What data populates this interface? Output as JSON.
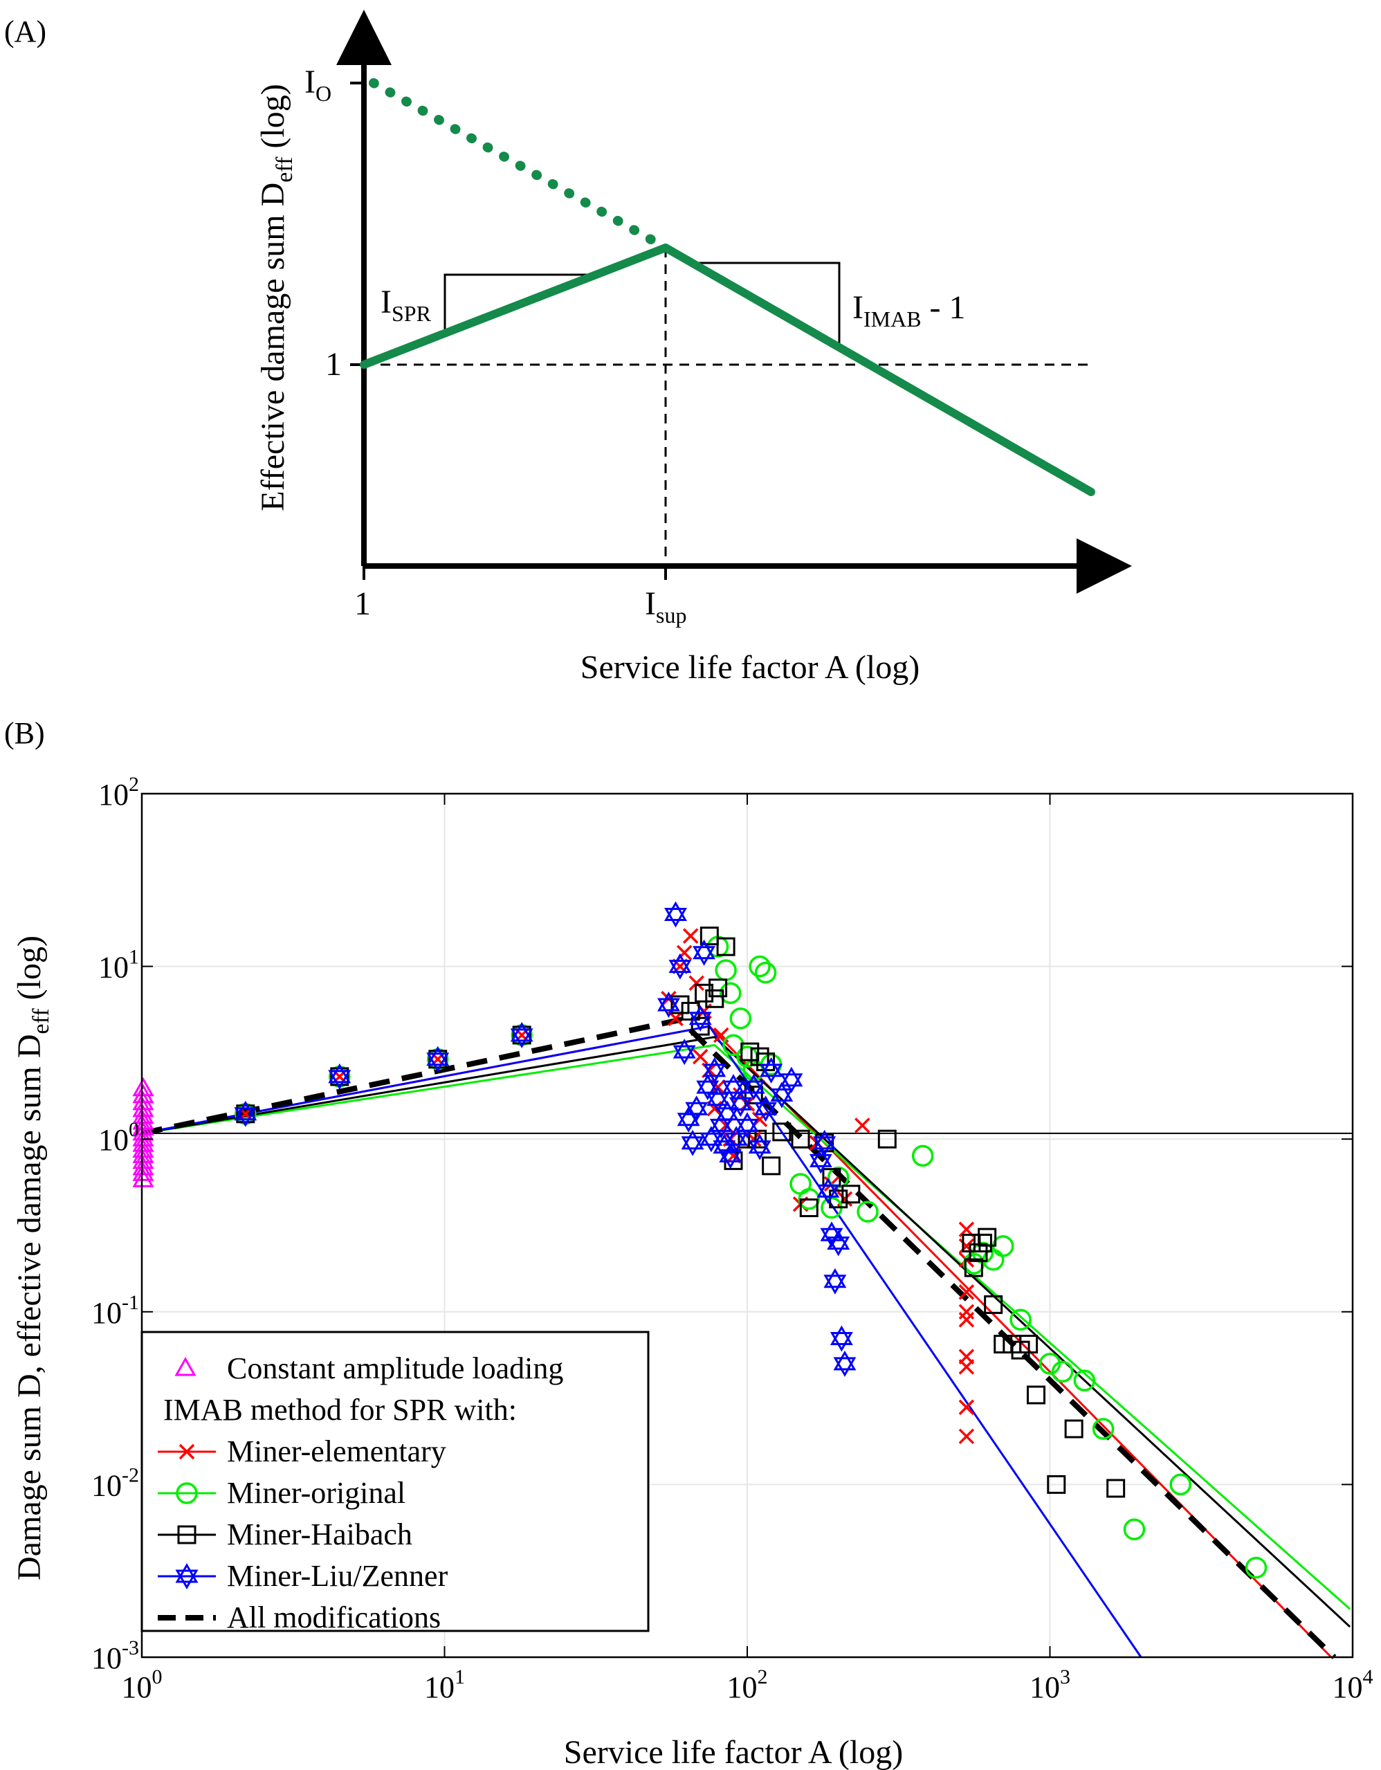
{
  "panel_a": {
    "label": "(A)",
    "ylabel": {
      "main": "Effective damage sum D",
      "sub": "eff",
      "suffix": " (log)"
    },
    "xlabel": "Service life factor A (log)",
    "y_tick_io": {
      "main": "I",
      "sub": "O"
    },
    "y_tick_one": "1",
    "x_tick_one": "1",
    "x_tick_isup": {
      "main": "I",
      "sub": "sup"
    },
    "slope_left": {
      "main": "I",
      "sub": "SPR"
    },
    "slope_right": {
      "main": "I",
      "sub": "IMAB",
      "suffix": " - 1"
    },
    "colors": {
      "curve": "#148a4b"
    }
  },
  "panel_b": {
    "label": "(B)",
    "ylabel": {
      "main": "Damage sum D, effective damage sum D",
      "sub": "eff",
      "suffix": " (log)"
    },
    "xlabel": "Service life factor A (log)",
    "legend": {
      "constant": "Constant amplitude loading",
      "header": "IMAB method for SPR with:",
      "items": [
        {
          "label": "Miner-elementary",
          "color": "#ff0000",
          "marker": "x"
        },
        {
          "label": "Miner-original",
          "color": "#00ee00",
          "marker": "circle"
        },
        {
          "label": "Miner-Haibach",
          "color": "#000000",
          "marker": "square"
        },
        {
          "label": "Miner-Liu/Zenner",
          "color": "#0000ff",
          "marker": "hexagram"
        },
        {
          "label": "All modifications",
          "color": "#000000",
          "marker": "dashed-line"
        }
      ]
    }
  },
  "chart_data": [
    {
      "type": "line",
      "panel": "A",
      "xscale": "log",
      "yscale": "log",
      "series": [
        {
          "points_x": [
            "1",
            "I_sup"
          ],
          "points_y": [
            "1",
            "peak"
          ],
          "style": "solid"
        },
        {
          "points_x": [
            "I_sup",
            "end"
          ],
          "points_y": [
            "peak",
            "low"
          ],
          "style": "solid"
        },
        {
          "points_x": [
            "1",
            "I_sup"
          ],
          "points_y": [
            "I_O",
            "peak"
          ],
          "style": "dotted"
        }
      ]
    },
    {
      "type": "scatter",
      "panel": "B",
      "xscale": "log",
      "yscale": "log",
      "xlim": [
        1,
        10000
      ],
      "ylim": [
        0.001,
        100
      ],
      "x_ticks": [
        {
          "base": "10",
          "exp": "0"
        },
        {
          "base": "10",
          "exp": "1"
        },
        {
          "base": "10",
          "exp": "2"
        },
        {
          "base": "10",
          "exp": "3"
        },
        {
          "base": "10",
          "exp": "4"
        }
      ],
      "y_ticks": [
        {
          "base": "10",
          "exp": "-3"
        },
        {
          "base": "10",
          "exp": "-2"
        },
        {
          "base": "10",
          "exp": "-1"
        },
        {
          "base": "10",
          "exp": "0"
        },
        {
          "base": "10",
          "exp": "1"
        },
        {
          "base": "10",
          "exp": "2"
        }
      ],
      "grid": true,
      "legend_position": "bottom-left",
      "reference_line_y": 1.08,
      "fit_lines": [
        {
          "name": "Miner-elementary",
          "color": "#ff0000",
          "width": 3,
          "x": [
            1,
            75,
            8500
          ],
          "y": [
            1.08,
            4.5,
            0.001
          ]
        },
        {
          "name": "Miner-original",
          "color": "#00ee00",
          "width": 3,
          "x": [
            1,
            78,
            9800
          ],
          "y": [
            1.08,
            3.5,
            0.0019
          ]
        },
        {
          "name": "Miner-Haibach",
          "color": "#000000",
          "width": 3,
          "x": [
            1,
            78,
            9800
          ],
          "y": [
            1.08,
            3.9,
            0.0015
          ]
        },
        {
          "name": "Miner-Liu/Zenner",
          "color": "#0000ff",
          "width": 3,
          "x": [
            1,
            75,
            2000
          ],
          "y": [
            1.08,
            4.5,
            0.001
          ]
        },
        {
          "name": "All modifications",
          "color": "#000000",
          "width": 8,
          "dash": true,
          "x": [
            1,
            60,
            8700
          ],
          "y": [
            1.08,
            4.9,
            0.001
          ]
        }
      ],
      "constant_amplitude": {
        "x": 1.0,
        "y": [
          0.58,
          0.63,
          0.68,
          0.74,
          0.8,
          0.86,
          0.93,
          1.0,
          1.08,
          1.16,
          1.25,
          1.35,
          1.48,
          1.62,
          1.78,
          1.95
        ],
        "color": "#ff00ff"
      },
      "series": [
        {
          "name": "Miner-elementary",
          "marker": "x",
          "color": "#ff0000",
          "x": [
            2.2,
            4.5,
            9.5,
            18,
            55,
            58,
            60,
            62,
            65,
            68,
            70,
            72,
            75,
            78,
            80,
            82,
            85,
            88,
            90,
            95,
            100,
            105,
            110,
            150,
            170,
            190,
            210,
            240,
            530,
            530,
            530,
            530,
            530,
            530,
            530,
            530,
            530,
            530
          ],
          "y": [
            1.4,
            2.3,
            2.9,
            4.0,
            6.5,
            5.0,
            10,
            12,
            15,
            8.0,
            3.0,
            5.5,
            2.5,
            1.5,
            2.0,
            4.0,
            1.2,
            1.0,
            0.8,
            1.8,
            1.6,
            1.0,
            1.3,
            0.42,
            0.95,
            0.55,
            0.45,
            1.2,
            0.3,
            0.24,
            0.2,
            0.13,
            0.1,
            0.09,
            0.055,
            0.048,
            0.028,
            0.019
          ]
        },
        {
          "name": "Miner-original",
          "marker": "circle",
          "color": "#00ee00",
          "x": [
            2.2,
            4.5,
            9.5,
            18,
            80,
            85,
            88,
            90,
            95,
            100,
            105,
            110,
            115,
            120,
            150,
            160,
            190,
            200,
            250,
            380,
            560,
            600,
            650,
            700,
            800,
            1000,
            1100,
            1300,
            1500,
            2700,
            1900,
            4800
          ],
          "y": [
            1.4,
            2.3,
            2.9,
            4.0,
            13,
            9.5,
            7.0,
            3.5,
            5.0,
            3.0,
            2.5,
            10,
            9.2,
            2.7,
            0.55,
            0.45,
            0.4,
            0.6,
            0.38,
            0.8,
            0.19,
            0.22,
            0.2,
            0.24,
            0.09,
            0.05,
            0.045,
            0.04,
            0.021,
            0.01,
            0.0055,
            0.0033
          ]
        },
        {
          "name": "Miner-Haibach",
          "marker": "square",
          "color": "#000000",
          "x": [
            2.2,
            4.5,
            9.5,
            18,
            60,
            65,
            70,
            72,
            75,
            78,
            80,
            85,
            90,
            100,
            102,
            105,
            108,
            110,
            115,
            120,
            130,
            150,
            160,
            180,
            190,
            200,
            220,
            290,
            550,
            560,
            580,
            600,
            620,
            650,
            700,
            750,
            800,
            850,
            900,
            1050,
            1200,
            1650
          ],
          "y": [
            1.4,
            2.3,
            2.9,
            4.0,
            6.0,
            5.5,
            4.5,
            7.0,
            15,
            6.5,
            7.5,
            13,
            0.75,
            1.0,
            3.2,
            1.8,
            1.0,
            3.0,
            2.8,
            0.7,
            1.1,
            1.0,
            0.4,
            0.95,
            0.6,
            0.45,
            0.48,
            1.0,
            0.25,
            0.18,
            0.22,
            0.25,
            0.27,
            0.11,
            0.065,
            0.065,
            0.06,
            0.065,
            0.033,
            0.01,
            0.021,
            0.0095
          ]
        },
        {
          "name": "Miner-Liu/Zenner",
          "marker": "hexagram",
          "color": "#0000ff",
          "x": [
            2.2,
            4.5,
            9.5,
            18,
            55,
            58,
            60,
            62,
            64,
            66,
            68,
            70,
            72,
            74,
            76,
            78,
            80,
            82,
            84,
            86,
            88,
            90,
            92,
            95,
            100,
            105,
            110,
            115,
            120,
            130,
            140,
            175,
            180,
            185,
            190,
            195,
            200,
            205,
            210
          ],
          "y": [
            1.4,
            2.3,
            2.9,
            4.0,
            6.0,
            20,
            10,
            3.2,
            1.3,
            0.95,
            1.5,
            5.0,
            12,
            2.0,
            1.0,
            2.5,
            1.7,
            1.2,
            0.9,
            1.4,
            0.8,
            2.0,
            1.0,
            1.6,
            1.2,
            2.0,
            0.9,
            1.5,
            2.5,
            1.8,
            2.2,
            0.75,
            0.95,
            0.5,
            0.28,
            0.15,
            0.25,
            0.07,
            0.05
          ]
        }
      ]
    }
  ]
}
